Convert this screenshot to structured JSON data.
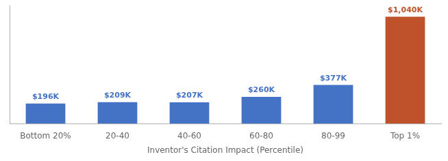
{
  "chart_data": {
    "type": "bar",
    "categories": [
      "Bottom 20%",
      "20-40",
      "40-60",
      "60-80",
      "80-99",
      "Top 1%"
    ],
    "values": [
      196,
      209,
      207,
      260,
      377,
      1040
    ],
    "value_labels": [
      "$196K",
      "$209K",
      "$207K",
      "$260K",
      "$377K",
      "$1,040K"
    ],
    "colors": [
      "#4472C4",
      "#4472C4",
      "#4472C4",
      "#4472C4",
      "#4472C4",
      "#C0522B"
    ],
    "xlabel": "Inventor's Citation Impact (Percentile)",
    "ylim": [
      0,
      1150
    ],
    "data_labels": true,
    "tick_labels": "x",
    "grid": false
  }
}
